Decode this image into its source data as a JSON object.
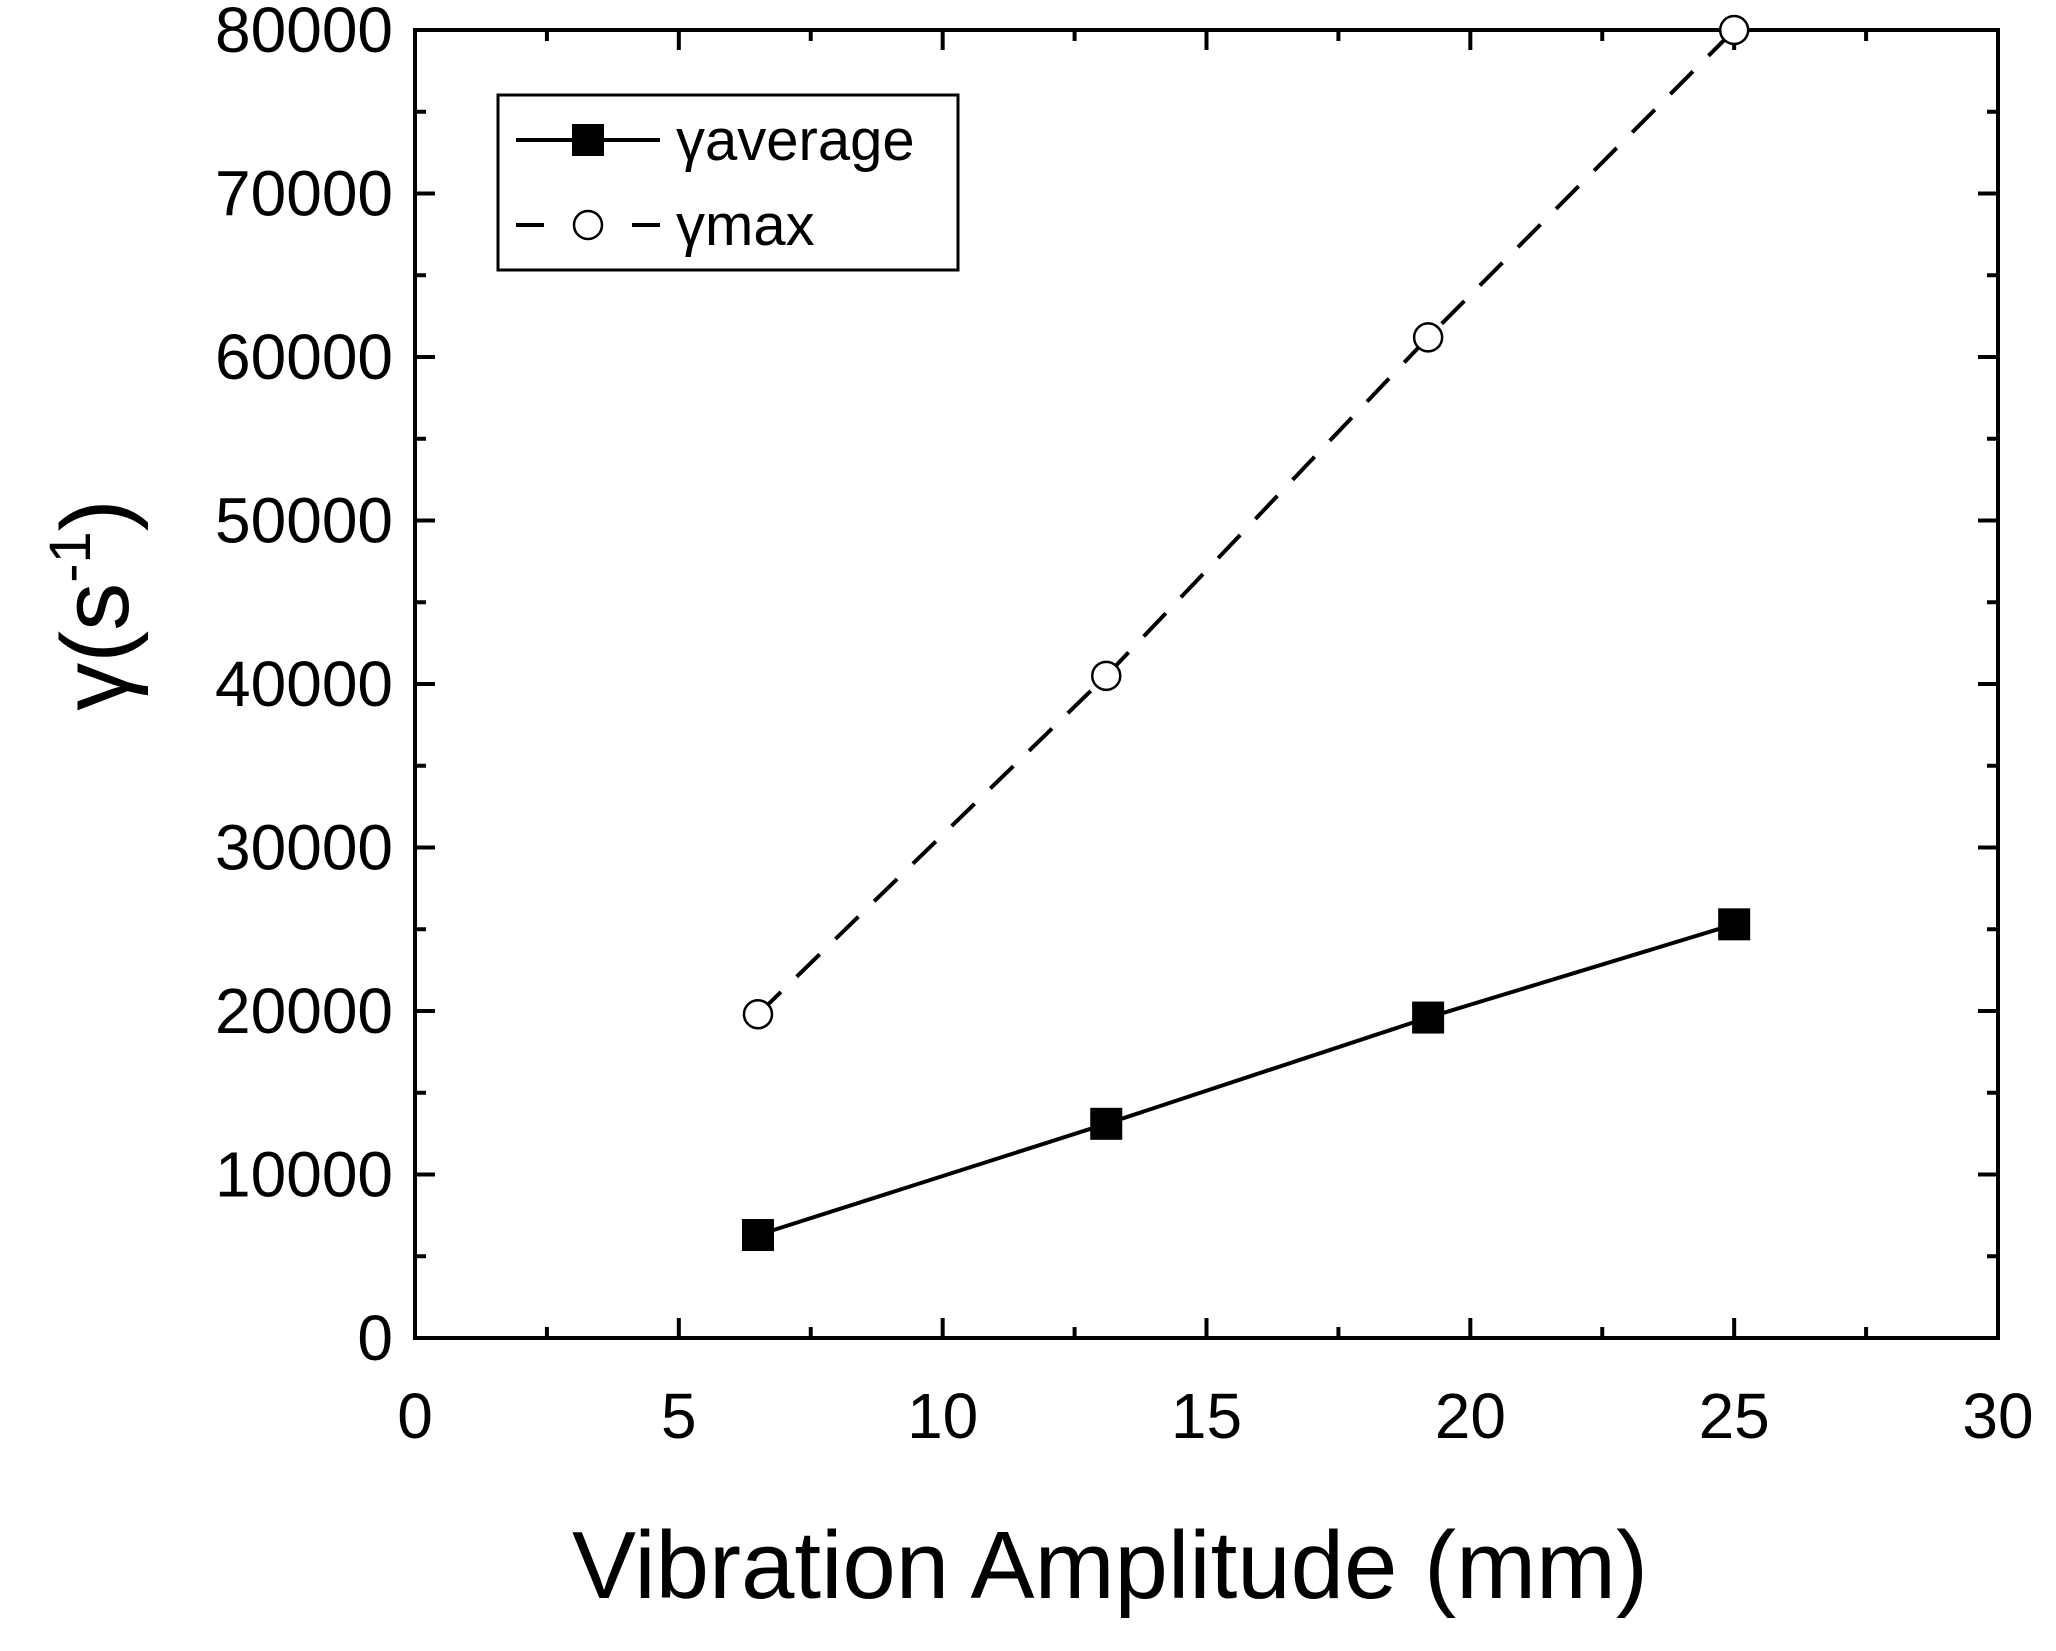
{
  "chart_data": {
    "type": "line",
    "title": "",
    "xlabel": "Vibration Amplitude (mm)",
    "ylabel": "γ(s",
    "ylabel_sup": "-1",
    "ylabel_close": ")",
    "xlim": [
      0,
      30
    ],
    "ylim": [
      0,
      80000
    ],
    "x_ticks": [
      0,
      5,
      10,
      15,
      20,
      25,
      30
    ],
    "x_tick_labels": [
      "0",
      "5",
      "10",
      "15",
      "20",
      "25",
      "30"
    ],
    "y_ticks": [
      0,
      10000,
      20000,
      30000,
      40000,
      50000,
      60000,
      70000,
      80000
    ],
    "y_tick_labels": [
      "0",
      "10000",
      "20000",
      "30000",
      "40000",
      "50000",
      "60000",
      "70000",
      "80000"
    ],
    "grid": false,
    "legend_position": "top-left",
    "series": [
      {
        "name": "γaverage",
        "marker": "filled-square",
        "line": "solid",
        "color": "#000000",
        "x": [
          6.5,
          13.1,
          19.2,
          25.0
        ],
        "y": [
          6300,
          13100,
          19600,
          25300
        ]
      },
      {
        "name": "γmax",
        "marker": "open-circle",
        "line": "dashed",
        "color": "#000000",
        "x": [
          6.5,
          13.1,
          19.2,
          25.0
        ],
        "y": [
          19800,
          40500,
          61200,
          80000
        ]
      }
    ]
  }
}
